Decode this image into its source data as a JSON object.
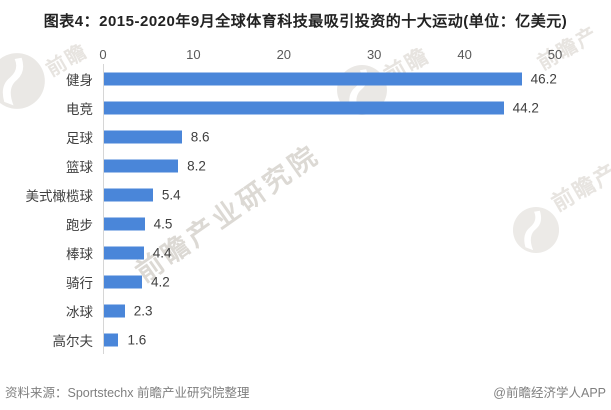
{
  "title": "图表4：2015-2020年9月全球体育科技最吸引投资的十大运动(单位：亿美元)",
  "chart_data": {
    "type": "bar",
    "orientation": "horizontal",
    "title": "2015-2020年9月全球体育科技最吸引投资的十大运动",
    "unit": "亿美元",
    "categories": [
      "健身",
      "电竞",
      "足球",
      "篮球",
      "美式橄榄球",
      "跑步",
      "棒球",
      "骑行",
      "冰球",
      "高尔夫"
    ],
    "values": [
      46.2,
      44.2,
      8.6,
      8.2,
      5.4,
      4.5,
      4.4,
      4.2,
      2.3,
      1.6
    ],
    "x_ticks": [
      0,
      10,
      20,
      30,
      40,
      50
    ],
    "xlim": [
      0,
      50
    ],
    "grid": false,
    "bar_color": "#4a86d9",
    "value_labels_shown": true
  },
  "footer": {
    "source": "资料来源：Sportstechx 前瞻产业研究院整理",
    "credit": "@前瞻经济学人APP"
  },
  "watermarks": {
    "brand_text": "前瞻",
    "brand_text_partial": "前瞻产",
    "diagonal_text": "前瞻产业研究院"
  },
  "colors": {
    "bar": "#4a86d9",
    "axis_line": "#d6d6d6",
    "title_text": "#222222",
    "tick_text": "#595959",
    "label_text": "#404040",
    "footer_text": "#7f7f7f",
    "watermark": "#e7e4e0"
  }
}
